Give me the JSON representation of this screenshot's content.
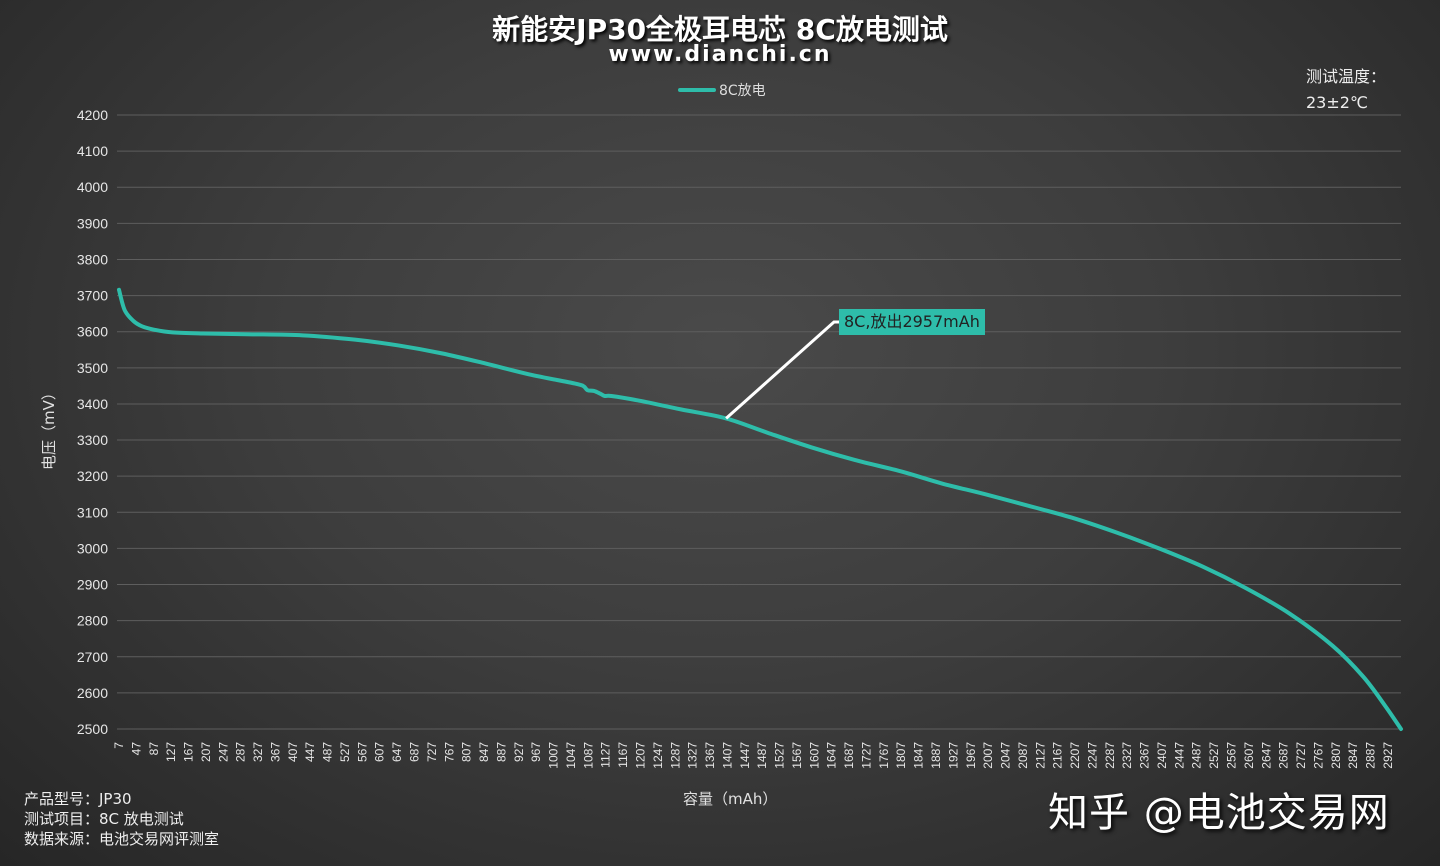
{
  "header": {
    "title": "新能安JP30全极耳电芯 8C放电测试",
    "subtitle": "www.dianchi.cn"
  },
  "legend": {
    "label": "8C放电"
  },
  "temperature": {
    "label": "测试温度：",
    "value": "23±2℃"
  },
  "info": {
    "model": "产品型号：JP30",
    "test": "测试项目：8C 放电测试",
    "source": "数据来源：电池交易网评测室"
  },
  "watermark": "知乎 @电池交易网",
  "colors": {
    "series": "#2ebdaa",
    "grid": "#5e5e5e",
    "annotation_line": "#ffffff"
  },
  "annotation": {
    "label": "8C,放出2957mAh",
    "point_x": 1404,
    "point_y": 3360
  },
  "chart_data": {
    "type": "line",
    "title": "新能安JP30全极耳电芯 8C放电测试",
    "subtitle": "www.dianchi.cn",
    "xlabel": "容量（mAh）",
    "ylabel": "电压（mV）",
    "ylim": [
      2500,
      4200
    ],
    "xlim": [
      7,
      2957
    ],
    "grid": true,
    "legend_position": "top",
    "y_ticks": [
      4200,
      4100,
      4000,
      3900,
      3800,
      3700,
      3600,
      3500,
      3400,
      3300,
      3200,
      3100,
      3000,
      2900,
      2800,
      2700,
      2600,
      2500
    ],
    "x_ticks": [
      7,
      47,
      87,
      127,
      167,
      207,
      247,
      287,
      327,
      367,
      407,
      447,
      487,
      527,
      567,
      607,
      647,
      687,
      727,
      767,
      807,
      847,
      887,
      927,
      967,
      1007,
      1047,
      1087,
      1127,
      1167,
      1207,
      1247,
      1287,
      1327,
      1367,
      1407,
      1447,
      1487,
      1527,
      1567,
      1607,
      1647,
      1687,
      1727,
      1767,
      1807,
      1847,
      1887,
      1927,
      1967,
      2007,
      2047,
      2087,
      2127,
      2167,
      2207,
      2247,
      2287,
      2327,
      2367,
      2407,
      2447,
      2487,
      2527,
      2567,
      2607,
      2647,
      2687,
      2727,
      2767,
      2807,
      2847,
      2887,
      2927
    ],
    "series": [
      {
        "name": "8C放电",
        "x": [
          7,
          20,
          40,
          60,
          90,
          130,
          200,
          300,
          430,
          550,
          650,
          750,
          850,
          950,
          1050,
          1075,
          1085,
          1100,
          1115,
          1125,
          1140,
          1200,
          1300,
          1404,
          1500,
          1600,
          1700,
          1807,
          1900,
          2000,
          2100,
          2200,
          2300,
          2400,
          2500,
          2600,
          2700,
          2800,
          2870,
          2920,
          2957
        ],
        "values": [
          3716,
          3660,
          3630,
          3615,
          3605,
          3598,
          3595,
          3593,
          3590,
          3578,
          3562,
          3540,
          3512,
          3482,
          3458,
          3450,
          3438,
          3436,
          3428,
          3422,
          3422,
          3410,
          3385,
          3360,
          3320,
          3280,
          3245,
          3213,
          3180,
          3150,
          3118,
          3085,
          3045,
          3000,
          2950,
          2890,
          2820,
          2730,
          2645,
          2565,
          2500
        ]
      }
    ]
  }
}
